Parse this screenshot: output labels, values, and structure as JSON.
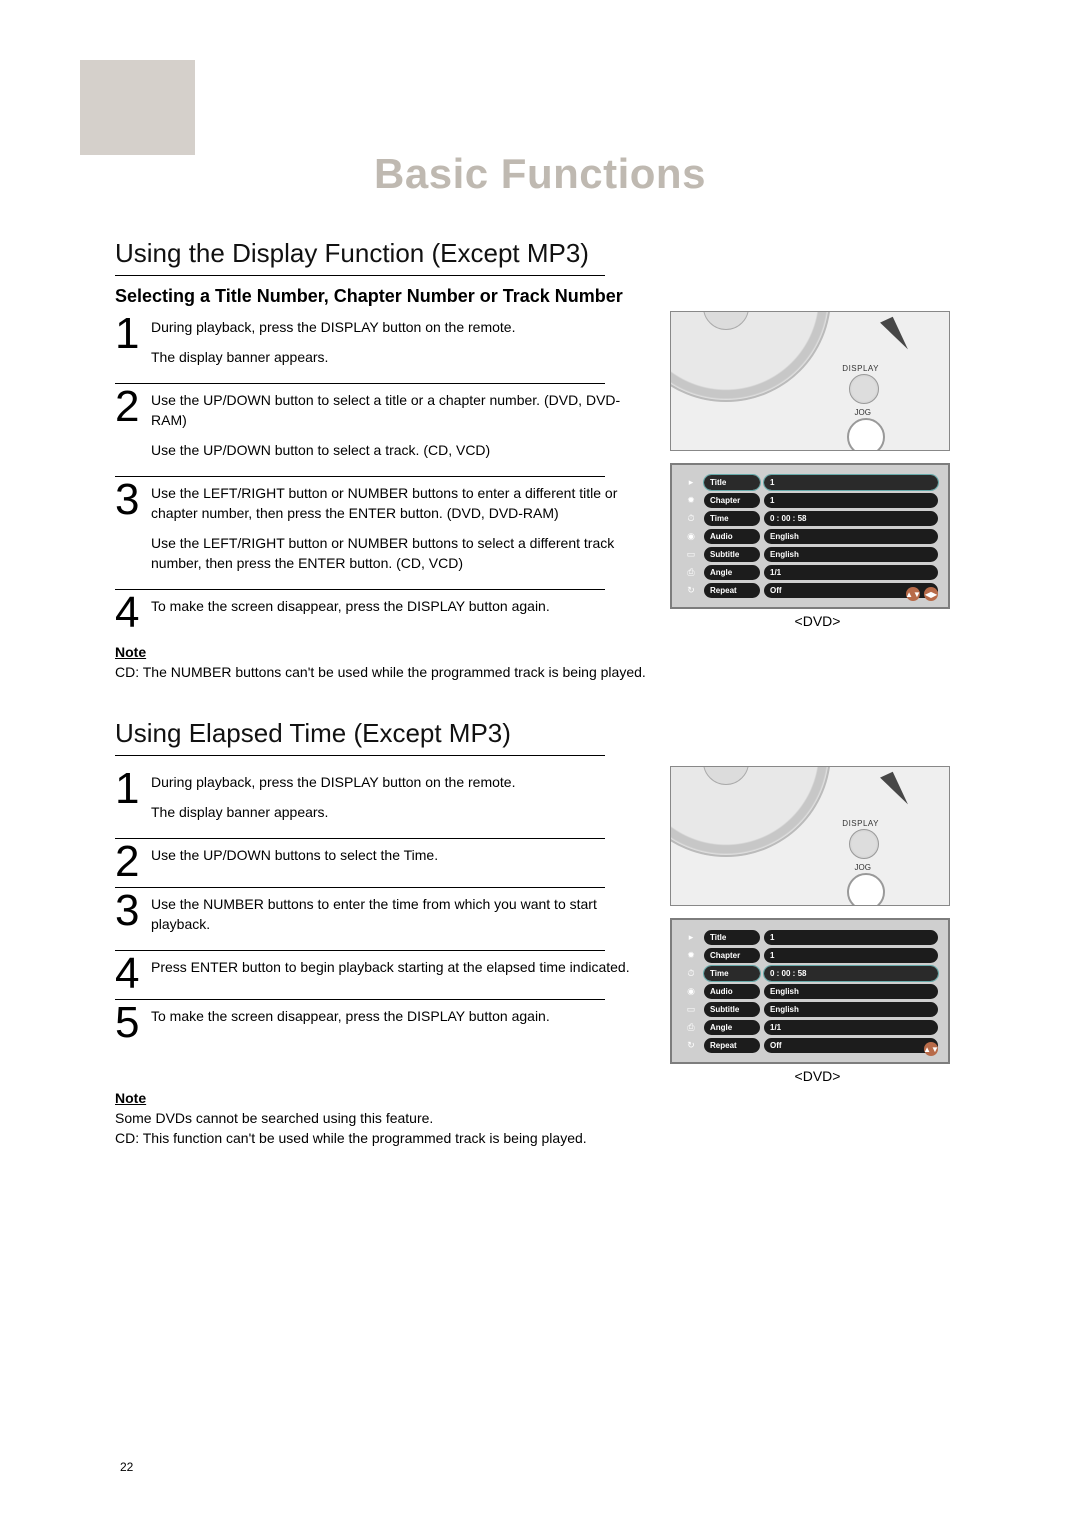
{
  "chapter_title": "Basic Functions",
  "section1": {
    "title": "Using the Display Function (Except MP3)",
    "subtitle": "Selecting a Title Number, Chapter Number or Track Number",
    "steps": [
      {
        "n": "1",
        "lines": [
          "During playback, press the DISPLAY button on the remote.",
          "The display banner appears."
        ]
      },
      {
        "n": "2",
        "lines": [
          "Use the UP/DOWN button to select a title or a chapter number. (DVD, DVD-RAM)",
          "Use the UP/DOWN button to select a track. (CD, VCD)"
        ]
      },
      {
        "n": "3",
        "lines": [
          "Use the LEFT/RIGHT button or NUMBER buttons to enter a different title or chapter number, then press the ENTER button. (DVD, DVD-RAM)",
          "Use the LEFT/RIGHT button or NUMBER buttons to select a different track number, then press the ENTER button. (CD, VCD)"
        ]
      },
      {
        "n": "4",
        "lines": [
          "To make the screen disappear, press the DISPLAY button again."
        ]
      }
    ],
    "note_head": "Note",
    "note_body": "CD: The NUMBER buttons can't be used while the programmed track is being played."
  },
  "section2": {
    "title": "Using Elapsed Time (Except MP3)",
    "steps": [
      {
        "n": "1",
        "lines": [
          "During playback, press the DISPLAY button on the remote.",
          "The display banner appears."
        ]
      },
      {
        "n": "2",
        "lines": [
          "Use the UP/DOWN buttons to select the Time."
        ]
      },
      {
        "n": "3",
        "lines": [
          "Use the NUMBER buttons to enter the time from which you want to start playback."
        ]
      },
      {
        "n": "4",
        "lines": [
          "Press ENTER button to begin playback starting at the elapsed time indicated."
        ]
      },
      {
        "n": "5",
        "lines": [
          "To make the screen disappear, press the DISPLAY button again."
        ]
      }
    ],
    "note_head": "Note",
    "note_body": "Some DVDs cannot be searched using this feature.\nCD: This function can't be used while the programmed track is being played."
  },
  "remote": {
    "display_label": "DISPLAY",
    "jog_label": "JOG"
  },
  "osd": {
    "caption": "<DVD>",
    "rows": [
      {
        "icon": "▸",
        "label": "Title",
        "value": "1",
        "hl": true
      },
      {
        "icon": "✹",
        "label": "Chapter",
        "value": "1",
        "hl": false
      },
      {
        "icon": "⏱",
        "label": "Time",
        "value": "0 : 00 : 58",
        "hl": false
      },
      {
        "icon": "◉",
        "label": "Audio",
        "value": "English",
        "hl": false
      },
      {
        "icon": "▭",
        "label": "Subtitle",
        "value": "English",
        "hl": false
      },
      {
        "icon": "⎙",
        "label": "Angle",
        "value": "1/1",
        "hl": false
      },
      {
        "icon": "↻",
        "label": "Repeat",
        "value": "Off",
        "hl": false
      }
    ],
    "nav2": [
      "▲▼",
      "◀▶"
    ],
    "nav1": [
      "▲▼"
    ]
  },
  "osd2_highlight_row": 2,
  "page_number": "22"
}
